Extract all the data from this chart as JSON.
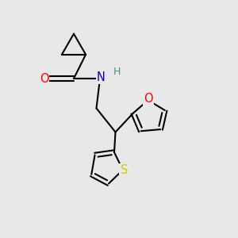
{
  "bg_color": "#e8e8e8",
  "atom_colors": {
    "O": "#ff0000",
    "N": "#0000cc",
    "S": "#cccc00",
    "C": "#000000",
    "H": "#4a9090"
  },
  "bond_color": "#000000",
  "font_size": 9.5
}
